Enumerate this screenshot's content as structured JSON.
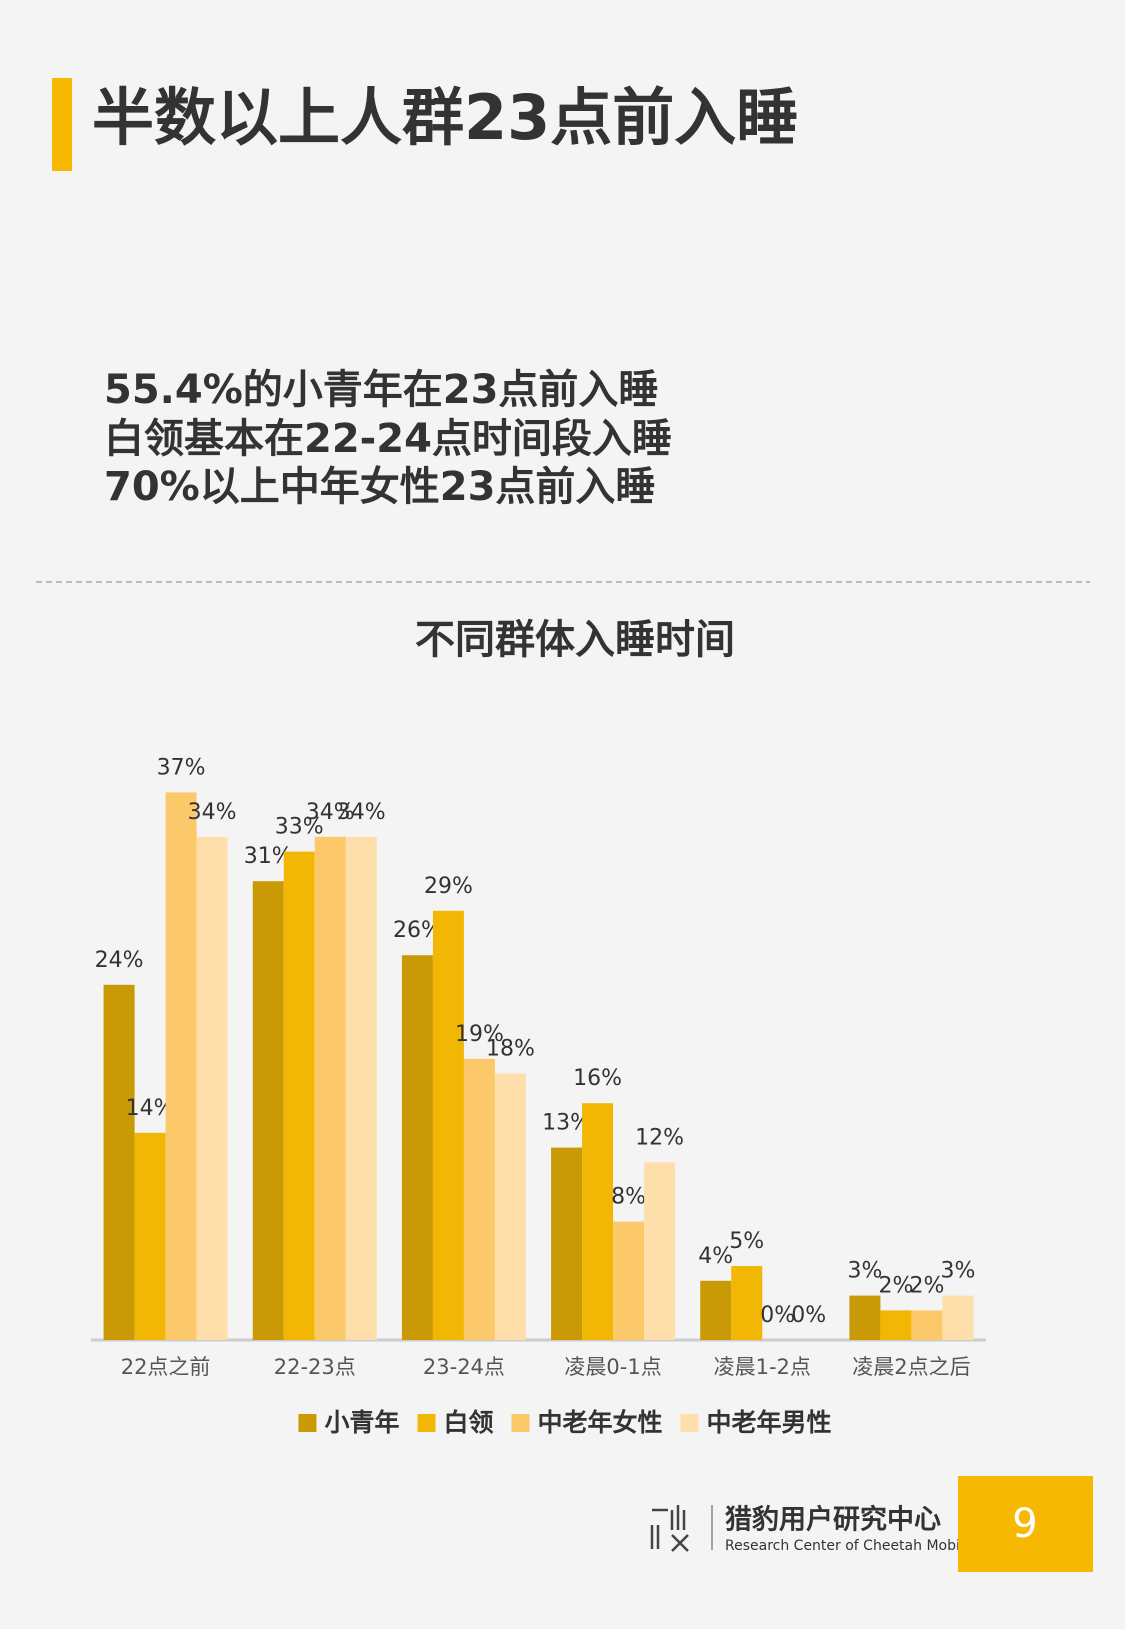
{
  "header": {
    "title": "半数以上人群23点前入睡"
  },
  "summary": [
    "55.4%的小青年在23点前入睡",
    "白领基本在22-24点时间段入睡",
    "70%以上中年女性23点前入睡"
  ],
  "chart_data": {
    "type": "bar",
    "title": "不同群体入睡时间",
    "categories": [
      "22点之前",
      "22-23点",
      "23-24点",
      "凌晨0-1点",
      "凌晨1-2点",
      "凌晨2点之后"
    ],
    "series": [
      {
        "name": "小青年",
        "color": "#c99a06",
        "values": [
          24,
          31,
          26,
          13,
          4,
          3
        ],
        "value_labels": [
          "24%",
          "31%",
          "26%",
          "13%",
          "4%",
          "3%"
        ]
      },
      {
        "name": "白领",
        "color": "#f2b705",
        "values": [
          14,
          33,
          29,
          16,
          5,
          2
        ],
        "value_labels": [
          "14%",
          "33%",
          "29%",
          "16%",
          "5%",
          "2%"
        ]
      },
      {
        "name": "中老年女性",
        "color": "#fbc96a",
        "values": [
          37,
          34,
          19,
          8,
          0,
          2
        ],
        "value_labels": [
          "37%",
          "34%",
          "19%",
          "8%",
          "0%",
          "2%"
        ]
      },
      {
        "name": "中老年男性",
        "color": "#fedeaa",
        "values": [
          34,
          34,
          18,
          12,
          0,
          3
        ],
        "value_labels": [
          "34%",
          "34%",
          "18%",
          "12%",
          "0%",
          "3%"
        ]
      }
    ],
    "legend": "bottom"
  },
  "footer": {
    "brand": "猎豹用户研究中心",
    "brand_en": "Research Center of Cheetah Mobile",
    "page": "9"
  }
}
